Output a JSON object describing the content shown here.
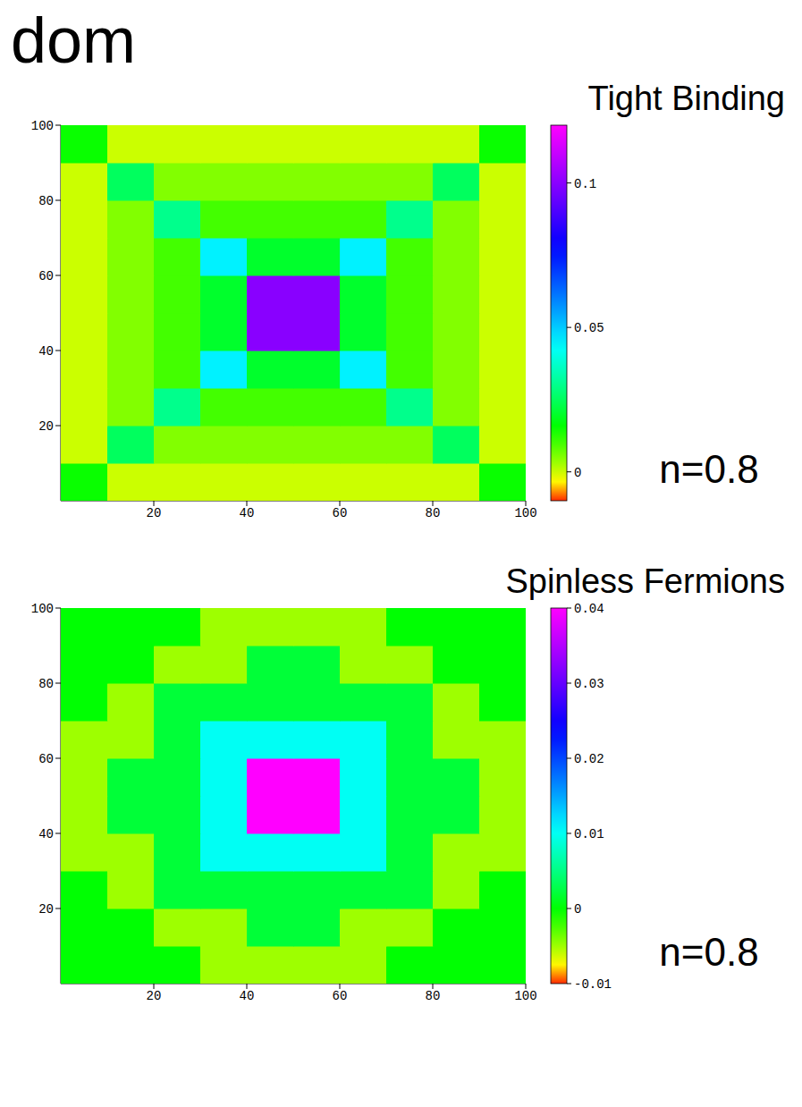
{
  "page_title": "dom",
  "chart_data": [
    {
      "type": "heatmap",
      "title": "Tight Binding",
      "annotation": "n=0.8",
      "x": [
        5,
        15,
        25,
        35,
        45,
        55,
        65,
        75,
        85,
        95
      ],
      "y": [
        5,
        15,
        25,
        35,
        45,
        55,
        65,
        75,
        85,
        95
      ],
      "xlim": [
        0,
        100
      ],
      "ylim": [
        0,
        100
      ],
      "xticks": [
        20,
        40,
        60,
        80,
        100
      ],
      "yticks": [
        20,
        40,
        60,
        80,
        100
      ],
      "values": [
        [
          0.015,
          0.0,
          0.0,
          0.0,
          0.0,
          0.0,
          0.0,
          0.0,
          0.0,
          0.015
        ],
        [
          0.0,
          0.025,
          0.005,
          0.005,
          0.005,
          0.005,
          0.005,
          0.005,
          0.025,
          0.0
        ],
        [
          0.0,
          0.005,
          0.03,
          0.01,
          0.01,
          0.01,
          0.01,
          0.03,
          0.005,
          0.0
        ],
        [
          0.0,
          0.005,
          0.01,
          0.045,
          0.02,
          0.02,
          0.045,
          0.01,
          0.005,
          0.0
        ],
        [
          0.0,
          0.005,
          0.01,
          0.02,
          0.1,
          0.1,
          0.02,
          0.01,
          0.005,
          0.0
        ],
        [
          0.0,
          0.005,
          0.01,
          0.02,
          0.1,
          0.1,
          0.02,
          0.01,
          0.005,
          0.0
        ],
        [
          0.0,
          0.005,
          0.01,
          0.045,
          0.02,
          0.02,
          0.045,
          0.01,
          0.005,
          0.0
        ],
        [
          0.0,
          0.005,
          0.03,
          0.01,
          0.01,
          0.01,
          0.01,
          0.03,
          0.005,
          0.0
        ],
        [
          0.0,
          0.025,
          0.005,
          0.005,
          0.005,
          0.005,
          0.005,
          0.005,
          0.025,
          0.0
        ],
        [
          0.015,
          0.0,
          0.0,
          0.0,
          0.0,
          0.0,
          0.0,
          0.0,
          0.0,
          0.015
        ]
      ],
      "zlim": [
        -0.01,
        0.12
      ],
      "zticks": [
        0,
        0.05,
        0.1
      ]
    },
    {
      "type": "heatmap",
      "title": "Spinless Fermions",
      "annotation": "n=0.8",
      "x": [
        5,
        15,
        25,
        35,
        45,
        55,
        65,
        75,
        85,
        95
      ],
      "y": [
        5,
        15,
        25,
        35,
        45,
        55,
        65,
        75,
        85,
        95
      ],
      "xlim": [
        0,
        100
      ],
      "ylim": [
        0,
        100
      ],
      "xticks": [
        20,
        40,
        60,
        80,
        100
      ],
      "yticks": [
        20,
        40,
        60,
        80,
        100
      ],
      "values": [
        [
          0.0,
          0.0,
          0.0,
          -0.005,
          -0.005,
          -0.005,
          -0.005,
          0.0,
          0.0,
          0.0
        ],
        [
          0.0,
          0.0,
          -0.005,
          -0.005,
          0.002,
          0.002,
          -0.005,
          -0.005,
          0.0,
          0.0
        ],
        [
          0.0,
          -0.005,
          0.002,
          0.002,
          0.002,
          0.002,
          0.002,
          0.002,
          -0.005,
          0.0
        ],
        [
          -0.005,
          -0.005,
          0.002,
          0.01,
          0.01,
          0.01,
          0.01,
          0.002,
          -0.005,
          -0.005
        ],
        [
          -0.005,
          0.002,
          0.002,
          0.01,
          0.04,
          0.04,
          0.01,
          0.002,
          0.002,
          -0.005
        ],
        [
          -0.005,
          0.002,
          0.002,
          0.01,
          0.04,
          0.04,
          0.01,
          0.002,
          0.002,
          -0.005
        ],
        [
          -0.005,
          -0.005,
          0.002,
          0.01,
          0.01,
          0.01,
          0.01,
          0.002,
          -0.005,
          -0.005
        ],
        [
          0.0,
          -0.005,
          0.002,
          0.002,
          0.002,
          0.002,
          0.002,
          0.002,
          -0.005,
          0.0
        ],
        [
          0.0,
          0.0,
          -0.005,
          -0.005,
          0.002,
          0.002,
          -0.005,
          -0.005,
          0.0,
          0.0
        ],
        [
          0.0,
          0.0,
          0.0,
          -0.005,
          -0.005,
          -0.005,
          -0.005,
          0.0,
          0.0,
          0.0
        ]
      ],
      "zlim": [
        -0.01,
        0.04
      ],
      "zticks": [
        -0.01,
        0,
        0.01,
        0.02,
        0.03,
        0.04
      ]
    }
  ]
}
